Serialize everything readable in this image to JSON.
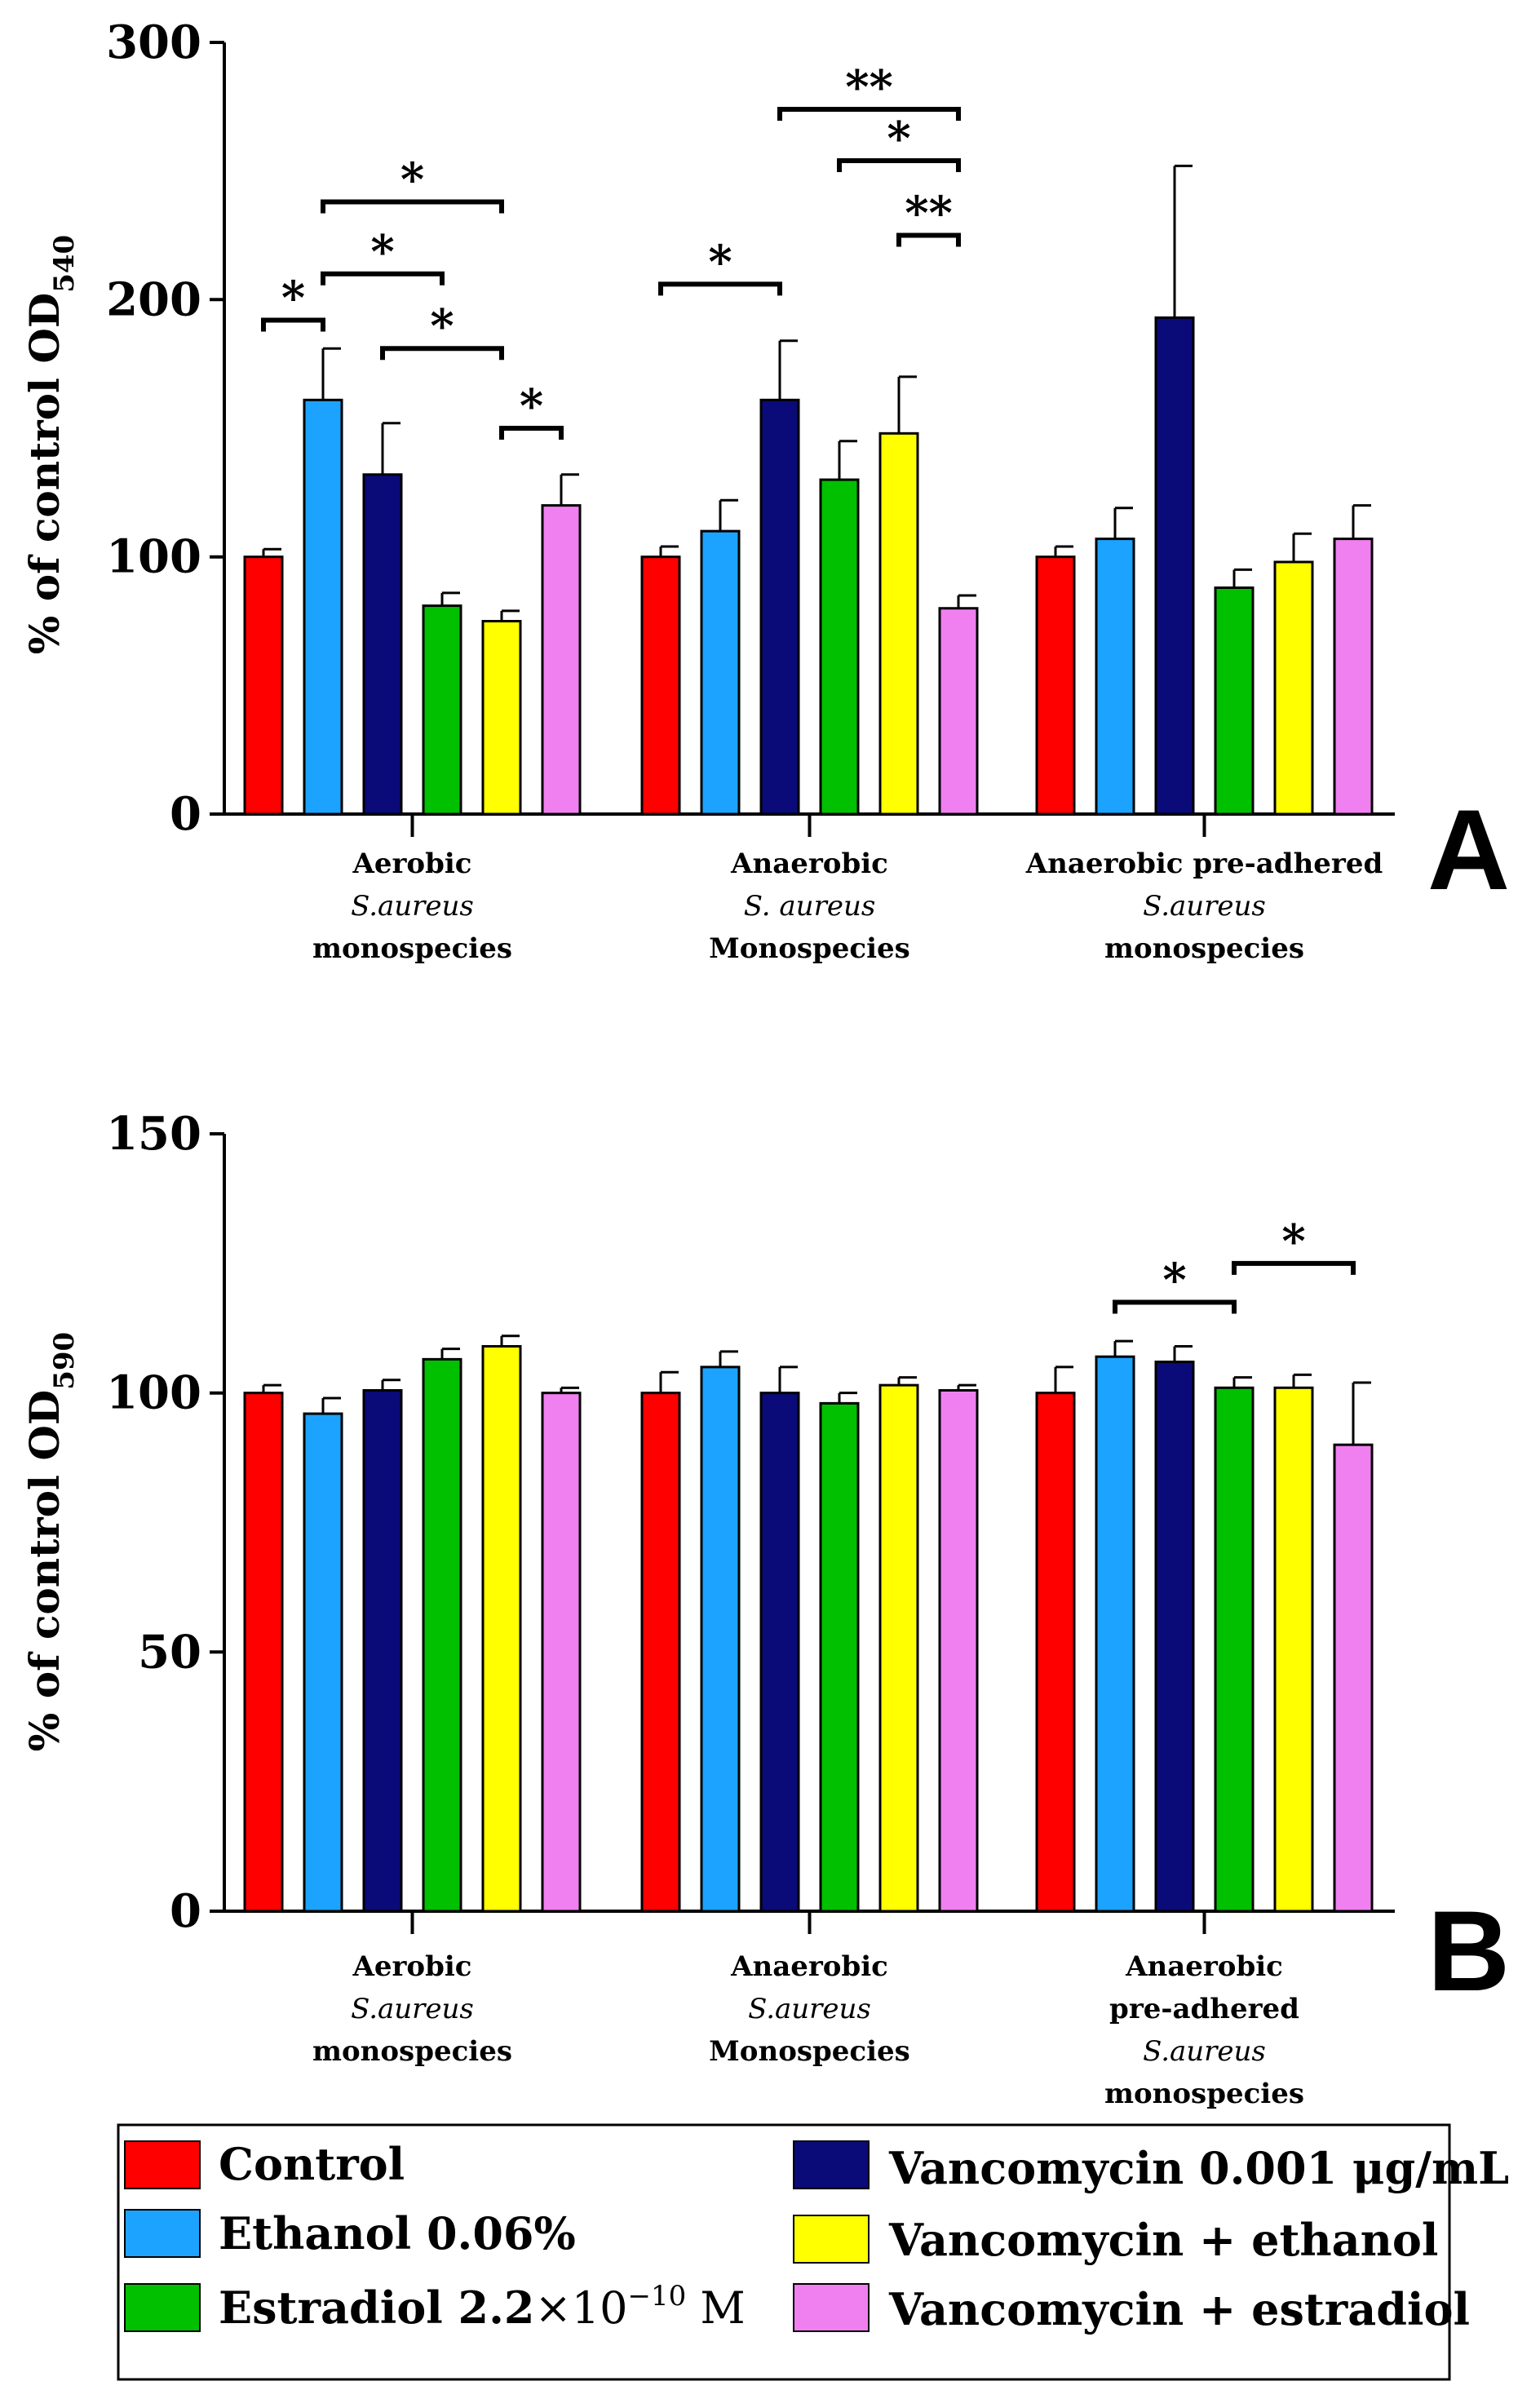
{
  "series": [
    {
      "name": "Control",
      "color": "#ff0000"
    },
    {
      "name": "Ethanol 0.06%",
      "color": "#1ca3ff"
    },
    {
      "name": "Vancomycin 0.001 μg/mL",
      "color": "#0a0a78"
    },
    {
      "name": "Estradiol 2.2×10⁻¹⁰ M",
      "color": "#00c000"
    },
    {
      "name": "Vancomycin + ethanol",
      "color": "#ffff00"
    },
    {
      "name": "Vancomycin + estradiol",
      "color": "#f080f0"
    }
  ],
  "legend": {
    "control": "Control",
    "ethanol": "Ethanol 0.06%",
    "estradiol_prefix": "Estradiol 2.2",
    "estradiol_times": "×10",
    "estradiol_exp": "−10",
    "estradiol_unit": " M",
    "vancomycin": "Vancomycin 0.001 μg/mL",
    "vanc_ethanol": "Vancomycin + ethanol",
    "vanc_estradiol": "Vancomycin + estradiol"
  },
  "chart_data": [
    {
      "type": "bar",
      "panel": "A",
      "ylabel_main": "% of control OD",
      "ylabel_sub": "540",
      "ylim": [
        0,
        300
      ],
      "yticks": [
        "0",
        "100",
        "200",
        "300"
      ],
      "categories": [
        [
          "Aerobic",
          "S.aureus",
          "monospecies"
        ],
        [
          "Anaerobic",
          "S. aureus",
          "Monospecies"
        ],
        [
          "Anaerobic pre-adhered",
          "S.aureus",
          "monospecies"
        ]
      ],
      "values": [
        [
          100,
          161,
          132,
          81,
          75,
          120
        ],
        [
          100,
          110,
          161,
          130,
          148,
          80
        ],
        [
          100,
          107,
          193,
          88,
          98,
          107
        ]
      ],
      "errors": [
        [
          3,
          20,
          20,
          5,
          4,
          12
        ],
        [
          4,
          12,
          23,
          15,
          22,
          5
        ],
        [
          4,
          12,
          59,
          7,
          11,
          13
        ]
      ],
      "significance": [
        {
          "group": 0,
          "from": 0,
          "to": 1,
          "y": 192,
          "label": "*"
        },
        {
          "group": 0,
          "from": 1,
          "to": 4,
          "y": 238,
          "label": "*"
        },
        {
          "group": 0,
          "from": 1,
          "to": 3,
          "y": 210,
          "label": "*"
        },
        {
          "group": 0,
          "from": 2,
          "to": 4,
          "y": 181,
          "label": "*"
        },
        {
          "group": 0,
          "from": 4,
          "to": 5,
          "y": 150,
          "label": "*"
        },
        {
          "group": 1,
          "from": 0,
          "to": 2,
          "y": 206,
          "label": "*"
        },
        {
          "group": 1,
          "from": 2,
          "to": 5,
          "y": 274,
          "label": "**"
        },
        {
          "group": 1,
          "from": 3,
          "to": 5,
          "y": 254,
          "label": "*"
        },
        {
          "group": 1,
          "from": 4,
          "to": 5,
          "y": 225,
          "label": "**"
        }
      ]
    },
    {
      "type": "bar",
      "panel": "B",
      "ylabel_main": "% of control OD",
      "ylabel_sub": "590",
      "ylim": [
        0,
        150
      ],
      "yticks": [
        "0",
        "50",
        "100",
        "150"
      ],
      "categories": [
        [
          "Aerobic",
          "S.aureus",
          "monospecies"
        ],
        [
          "Anaerobic",
          "S.aureus",
          "Monospecies"
        ],
        [
          "Anaerobic",
          "pre-adhered",
          "S.aureus",
          "monospecies"
        ]
      ],
      "values": [
        [
          100,
          96,
          100.5,
          106.5,
          109,
          100
        ],
        [
          100,
          105,
          100,
          98,
          101.5,
          100.5
        ],
        [
          100,
          107,
          106,
          101,
          101,
          90
        ]
      ],
      "errors": [
        [
          1.5,
          3,
          2,
          2,
          2,
          1
        ],
        [
          4,
          3,
          5,
          2,
          1.5,
          1
        ],
        [
          5,
          3,
          3,
          2,
          2.5,
          12
        ]
      ],
      "significance": [
        {
          "group": 2,
          "from": 1,
          "to": 3,
          "y": 117.5,
          "label": "*"
        },
        {
          "group": 2,
          "from": 3,
          "to": 5,
          "y": 125,
          "label": "*"
        }
      ]
    }
  ]
}
